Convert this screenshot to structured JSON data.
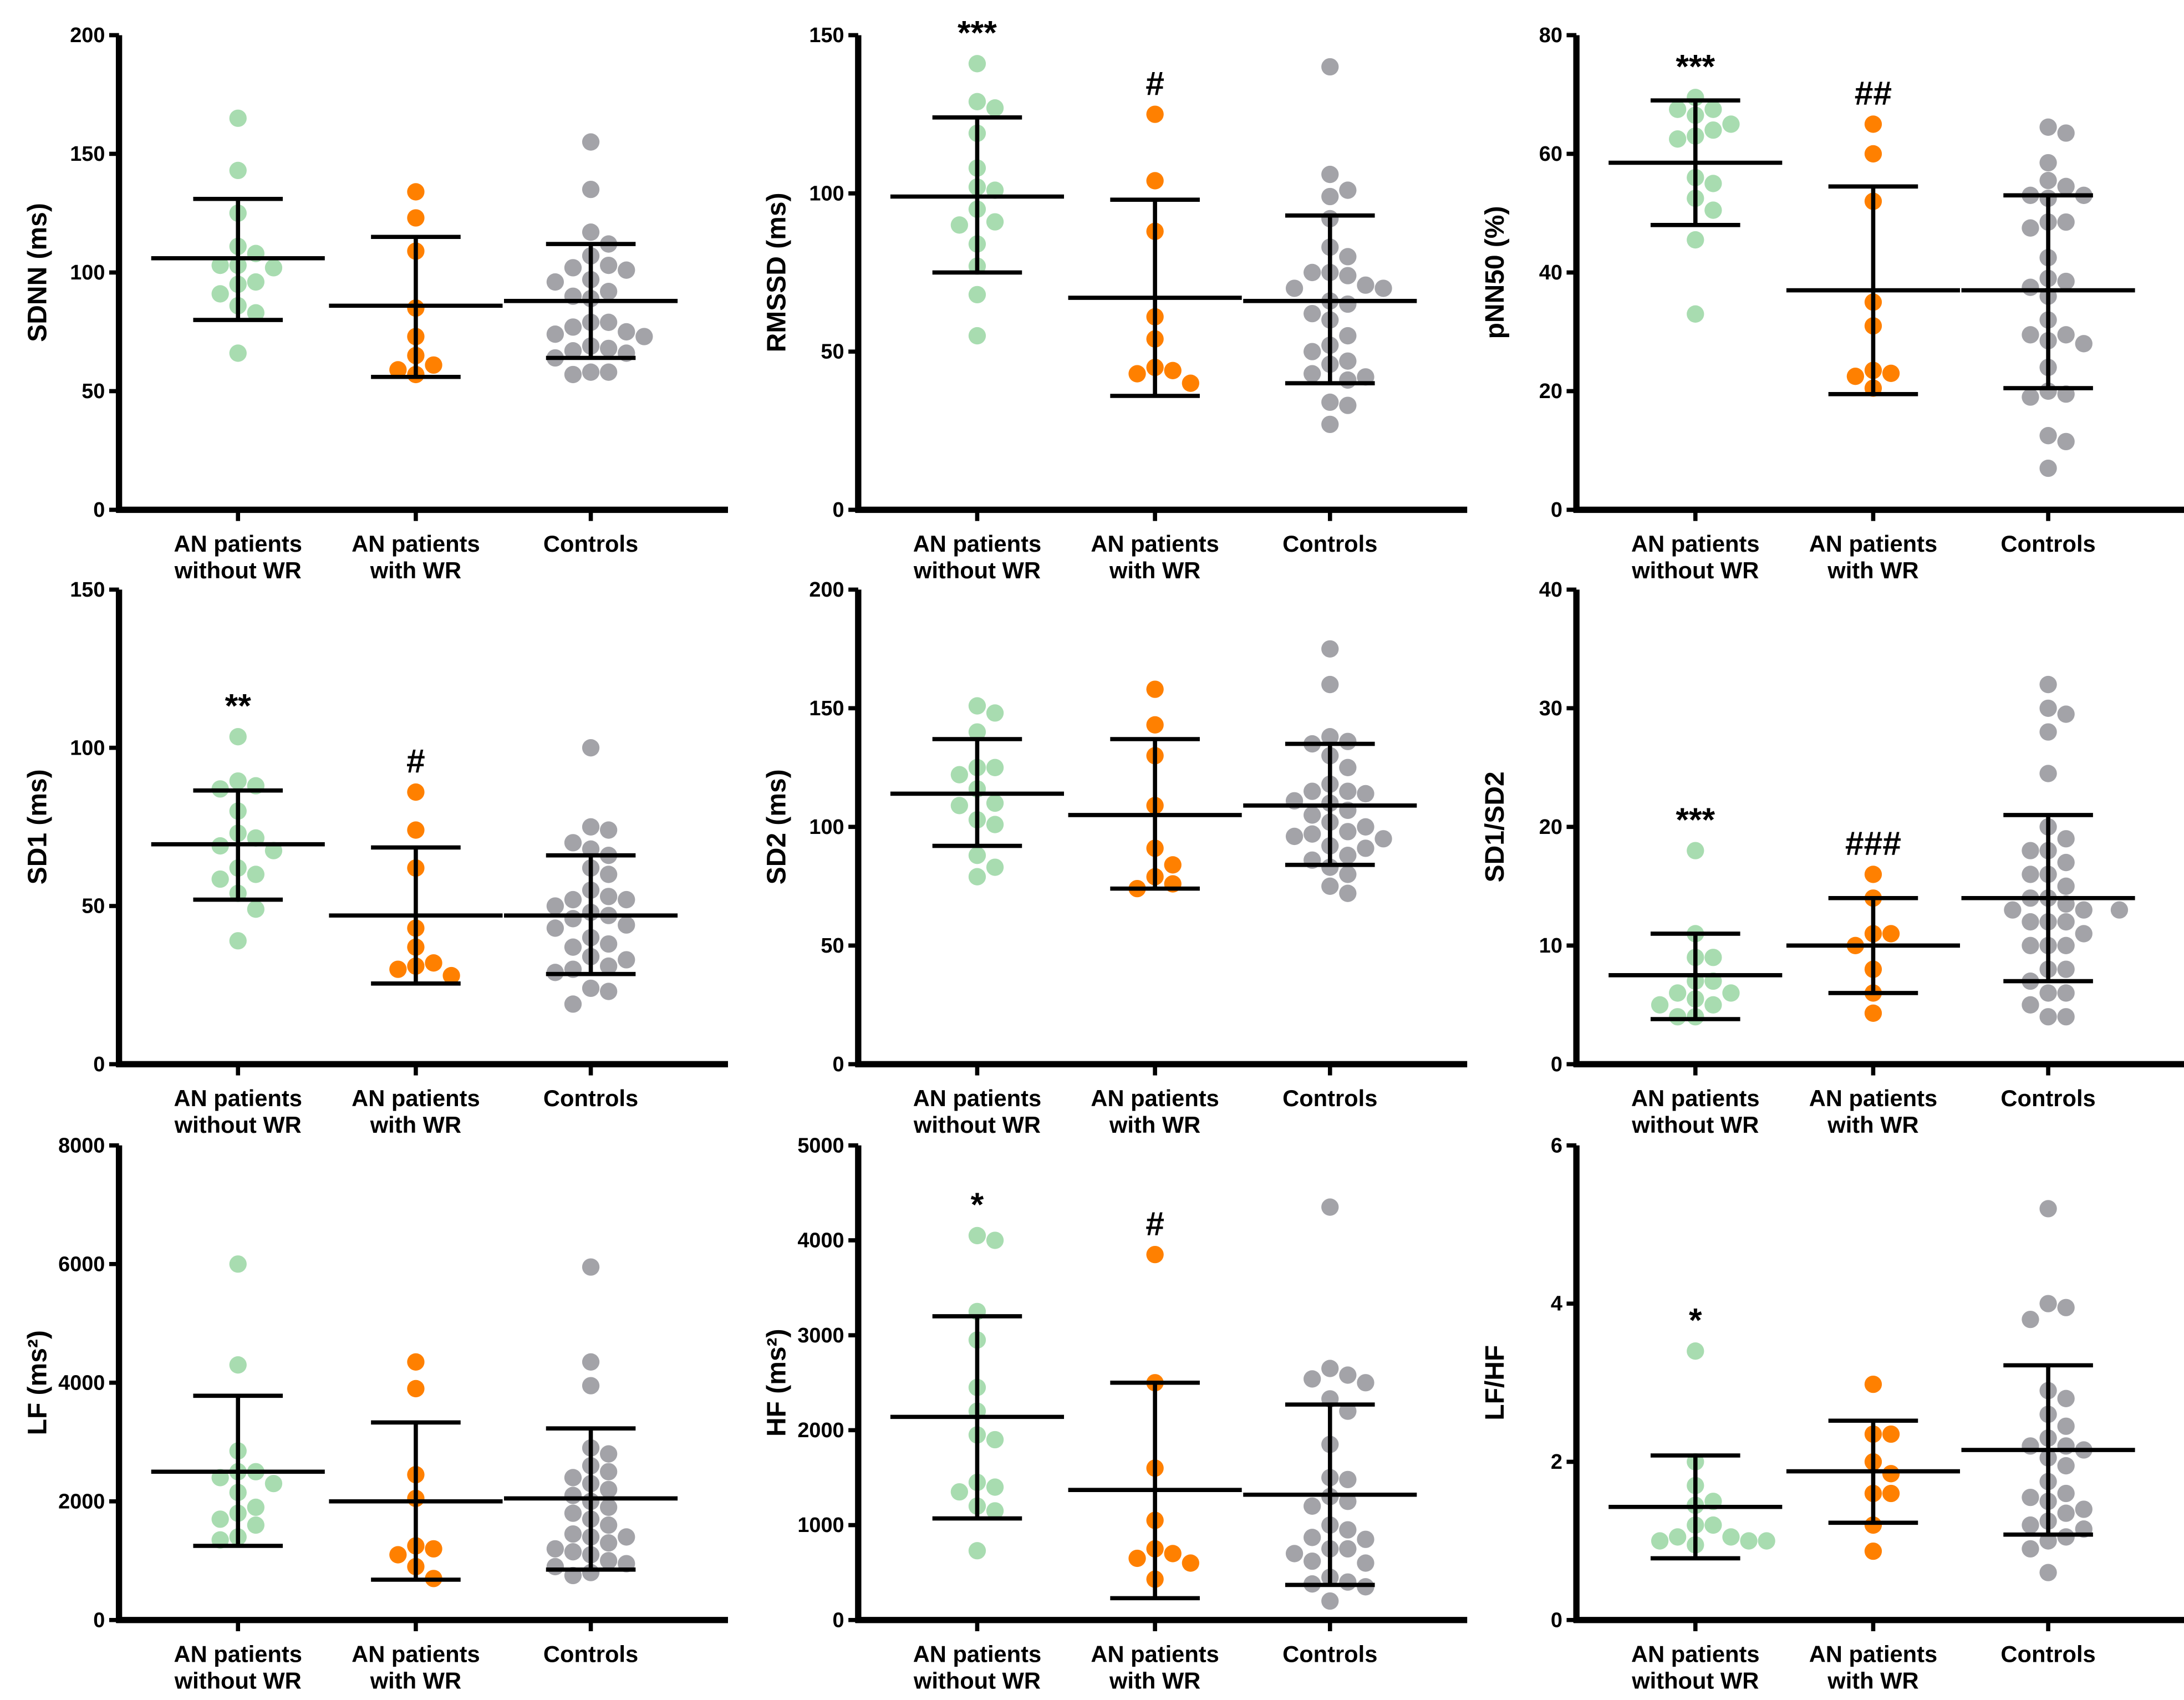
{
  "colors": {
    "without_wr": "#a8dcb0",
    "with_wr": "#ff8000",
    "controls": "#a3a3a8",
    "axis": "#000000"
  },
  "categories": [
    {
      "line1": "AN patients",
      "line2": "without WR"
    },
    {
      "line1": "AN patients",
      "line2": "with WR"
    },
    {
      "line1": "Controls",
      "line2": ""
    }
  ],
  "chart_data": [
    {
      "type": "scatter",
      "ylabel": "SDNN (ms)",
      "ylim": [
        0,
        200
      ],
      "yticks": [
        "0",
        "50",
        "100",
        "150",
        "200"
      ],
      "groups": [
        {
          "values": [
            165,
            143,
            125,
            111,
            108,
            103,
            103,
            102,
            95,
            96,
            91,
            86,
            83,
            66
          ],
          "mean": 106,
          "sd_upper": 131,
          "sd_lower": 80,
          "annotation": ""
        },
        {
          "values": [
            134,
            123,
            109,
            85,
            73,
            65,
            61,
            59,
            57
          ],
          "mean": 86,
          "sd_upper": 115,
          "sd_lower": 56,
          "annotation": ""
        },
        {
          "values": [
            155,
            135,
            117,
            112,
            107,
            103,
            102,
            101,
            97,
            96,
            92,
            90,
            89,
            79,
            79,
            77,
            75,
            74,
            73,
            69,
            68,
            67,
            66,
            64,
            58,
            58,
            57
          ],
          "mean": 88,
          "sd_upper": 112,
          "sd_lower": 64,
          "annotation": ""
        }
      ]
    },
    {
      "type": "scatter",
      "ylabel": "RMSSD (ms)",
      "ylim": [
        0,
        150
      ],
      "yticks": [
        "0",
        "50",
        "100",
        "150"
      ],
      "groups": [
        {
          "values": [
            141,
            129,
            127,
            119,
            108,
            102,
            101,
            95,
            91,
            90,
            84,
            77,
            68,
            55
          ],
          "mean": 99,
          "sd_upper": 124,
          "sd_lower": 75,
          "annotation": "***"
        },
        {
          "values": [
            125,
            104,
            88,
            61,
            54,
            45,
            44,
            43,
            40
          ],
          "mean": 67,
          "sd_upper": 98,
          "sd_lower": 36,
          "annotation": "#"
        },
        {
          "values": [
            140,
            106,
            101,
            99,
            92,
            83,
            80,
            75,
            75,
            74,
            71,
            70,
            70,
            66,
            65,
            62,
            60,
            55,
            52,
            50,
            47,
            46,
            43,
            42,
            41,
            34,
            33,
            27
          ],
          "mean": 66,
          "sd_upper": 93,
          "sd_lower": 40,
          "annotation": ""
        }
      ]
    },
    {
      "type": "scatter",
      "ylabel": "pNN50 (%)",
      "ylim": [
        0,
        80
      ],
      "yticks": [
        "0",
        "20",
        "40",
        "60",
        "80"
      ],
      "groups": [
        {
          "values": [
            69.5,
            67.5,
            67.5,
            66.5,
            65,
            64,
            63,
            62.5,
            56,
            55,
            52.5,
            50.5,
            45.5,
            33
          ],
          "mean": 58.5,
          "sd_upper": 69,
          "sd_lower": 48,
          "annotation": "***"
        },
        {
          "values": [
            65,
            60,
            52,
            35,
            31,
            23.5,
            23,
            22.5,
            20.5
          ],
          "mean": 37,
          "sd_upper": 54.5,
          "sd_lower": 19.5,
          "annotation": "##"
        },
        {
          "values": [
            64.5,
            63.5,
            58.5,
            55.5,
            54.5,
            53,
            53,
            52.5,
            48.5,
            48.5,
            47.5,
            42.5,
            39,
            38.5,
            37.5,
            36,
            32,
            29.5,
            29.5,
            28.5,
            28,
            24,
            20,
            19.5,
            19,
            12.5,
            11.5,
            7
          ],
          "mean": 37,
          "sd_upper": 53,
          "sd_lower": 20.5,
          "annotation": ""
        }
      ]
    },
    {
      "type": "scatter",
      "ylabel": "SD1 (ms)",
      "ylim": [
        0,
        150
      ],
      "yticks": [
        "0",
        "50",
        "100",
        "150"
      ],
      "groups": [
        {
          "values": [
            103.5,
            89.5,
            88,
            87,
            80,
            73,
            71.5,
            69,
            67.5,
            62,
            60,
            58.5,
            54,
            49,
            39
          ],
          "mean": 69.5,
          "sd_upper": 86.5,
          "sd_lower": 52,
          "annotation": "**"
        },
        {
          "values": [
            86,
            74,
            62,
            43,
            37,
            32,
            31,
            30,
            28
          ],
          "mean": 47,
          "sd_upper": 68.5,
          "sd_lower": 25.5,
          "annotation": "#"
        },
        {
          "values": [
            100,
            75,
            74,
            70,
            68,
            66,
            62,
            60,
            55,
            53,
            52,
            52,
            50,
            48,
            47,
            46,
            44,
            43,
            40,
            38,
            37,
            34,
            33,
            31,
            30,
            29,
            24,
            23,
            19
          ],
          "mean": 47,
          "sd_upper": 66,
          "sd_lower": 28.5,
          "annotation": ""
        }
      ]
    },
    {
      "type": "scatter",
      "ylabel": "SD2 (ms)",
      "ylim": [
        0,
        200
      ],
      "yticks": [
        "0",
        "50",
        "100",
        "150",
        "200"
      ],
      "groups": [
        {
          "values": [
            151,
            148,
            140,
            125,
            125,
            122,
            116,
            110,
            109,
            103,
            101,
            88,
            83,
            79
          ],
          "mean": 114,
          "sd_upper": 137,
          "sd_lower": 92,
          "annotation": ""
        },
        {
          "values": [
            158,
            143,
            130,
            109,
            91,
            84,
            79,
            76,
            74
          ],
          "mean": 105,
          "sd_upper": 137,
          "sd_lower": 74,
          "annotation": ""
        },
        {
          "values": [
            175,
            160,
            138,
            136,
            135,
            130,
            125,
            118,
            115,
            115,
            114,
            111,
            110,
            107,
            105,
            102,
            100,
            98,
            97,
            96,
            95,
            92,
            91,
            88,
            86,
            83,
            80,
            75,
            72
          ],
          "mean": 109,
          "sd_upper": 135,
          "sd_lower": 84,
          "annotation": ""
        }
      ]
    },
    {
      "type": "scatter",
      "ylabel": "SD1/SD2",
      "ylim": [
        0,
        40
      ],
      "yticks": [
        "0",
        "10",
        "20",
        "30",
        "40"
      ],
      "groups": [
        {
          "values": [
            18,
            11,
            9,
            9,
            7,
            7,
            6,
            6,
            5.5,
            5,
            5,
            4,
            4
          ],
          "mean": 7.5,
          "sd_upper": 11,
          "sd_lower": 3.8,
          "annotation": "***"
        },
        {
          "values": [
            16,
            14,
            11,
            11,
            10,
            8,
            6,
            4.3
          ],
          "mean": 10,
          "sd_upper": 14,
          "sd_lower": 6,
          "annotation": "###"
        },
        {
          "values": [
            32,
            30,
            29.5,
            28,
            24.5,
            20,
            19,
            18,
            18,
            17,
            16,
            16,
            15,
            14,
            14,
            13.5,
            13,
            13,
            13,
            12,
            12,
            12,
            11,
            10,
            10,
            10,
            8,
            8,
            7,
            6,
            6,
            5,
            4,
            4
          ],
          "mean": 14,
          "sd_upper": 21,
          "sd_lower": 7,
          "annotation": ""
        }
      ]
    },
    {
      "type": "scatter",
      "ylabel": "LF (ms²)",
      "ylim": [
        0,
        8000
      ],
      "yticks": [
        "0",
        "2000",
        "4000",
        "6000",
        "8000"
      ],
      "groups": [
        {
          "values": [
            6000,
            4300,
            2850,
            2500,
            2500,
            2400,
            2300,
            2150,
            1900,
            1800,
            1700,
            1600,
            1400,
            1350
          ],
          "mean": 2500,
          "sd_upper": 3780,
          "sd_lower": 1250,
          "annotation": ""
        },
        {
          "values": [
            4350,
            3900,
            2450,
            2050,
            1250,
            1200,
            1100,
            900,
            700
          ],
          "mean": 2000,
          "sd_upper": 3330,
          "sd_lower": 680,
          "annotation": ""
        },
        {
          "values": [
            5950,
            4350,
            3950,
            2900,
            2800,
            2600,
            2500,
            2400,
            2300,
            2200,
            2100,
            2000,
            1900,
            1800,
            1700,
            1600,
            1450,
            1400,
            1400,
            1300,
            1200,
            1150,
            1100,
            1000,
            950,
            900,
            800,
            750
          ],
          "mean": 2050,
          "sd_upper": 3230,
          "sd_lower": 850,
          "annotation": ""
        }
      ]
    },
    {
      "type": "scatter",
      "ylabel": "HF (ms²)",
      "ylim": [
        0,
        5000
      ],
      "yticks": [
        "0",
        "1000",
        "2000",
        "3000",
        "4000",
        "5000"
      ],
      "groups": [
        {
          "values": [
            4050,
            4000,
            3250,
            2950,
            2450,
            2200,
            1950,
            1900,
            1450,
            1400,
            1350,
            1200,
            1150,
            730
          ],
          "mean": 2140,
          "sd_upper": 3200,
          "sd_lower": 1070,
          "annotation": "*"
        },
        {
          "values": [
            3850,
            2500,
            1600,
            1050,
            750,
            700,
            650,
            600,
            430
          ],
          "mean": 1370,
          "sd_upper": 2500,
          "sd_lower": 230,
          "annotation": "#"
        },
        {
          "values": [
            4350,
            2650,
            2580,
            2540,
            2500,
            2330,
            2200,
            1850,
            1500,
            1480,
            1300,
            1250,
            1200,
            1000,
            950,
            870,
            850,
            750,
            750,
            700,
            620,
            600,
            450,
            400,
            380,
            350,
            200
          ],
          "mean": 1320,
          "sd_upper": 2270,
          "sd_lower": 370,
          "annotation": ""
        }
      ]
    },
    {
      "type": "scatter",
      "ylabel": "LF/HF",
      "ylim": [
        0,
        6
      ],
      "yticks": [
        "0",
        "2",
        "4",
        "6"
      ],
      "groups": [
        {
          "values": [
            3.4,
            2.0,
            1.7,
            1.5,
            1.45,
            1.2,
            1.2,
            1.05,
            1.05,
            1.0,
            1.0,
            1.0,
            0.95
          ],
          "mean": 1.43,
          "sd_upper": 2.08,
          "sd_lower": 0.78,
          "annotation": "*"
        },
        {
          "values": [
            2.98,
            2.35,
            2.35,
            2.0,
            1.85,
            1.6,
            1.6,
            1.2,
            0.87
          ],
          "mean": 1.88,
          "sd_upper": 2.52,
          "sd_lower": 1.23,
          "annotation": ""
        },
        {
          "values": [
            5.2,
            4.0,
            3.95,
            3.8,
            2.9,
            2.8,
            2.6,
            2.45,
            2.3,
            2.2,
            2.2,
            2.15,
            2.05,
            1.95,
            1.75,
            1.6,
            1.55,
            1.5,
            1.4,
            1.35,
            1.25,
            1.2,
            1.15,
            1.05,
            1.0,
            0.9,
            0.6
          ],
          "mean": 2.15,
          "sd_upper": 3.22,
          "sd_lower": 1.08,
          "annotation": ""
        }
      ]
    }
  ]
}
